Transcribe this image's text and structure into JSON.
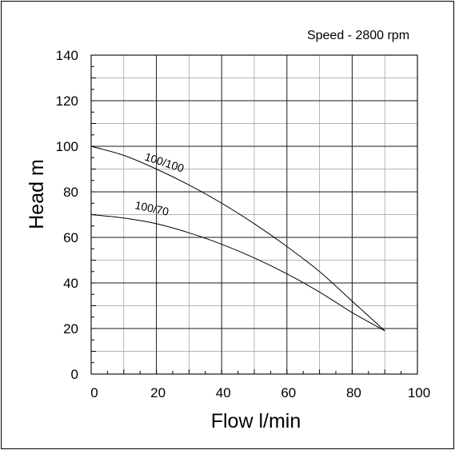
{
  "chart_data": {
    "type": "line",
    "annotation": "Speed - 2800 rpm",
    "xlabel": "Flow l/min",
    "ylabel": "Head m",
    "xlim": [
      0,
      100
    ],
    "ylim": [
      0,
      140
    ],
    "xticks": [
      "0",
      "20",
      "40",
      "60",
      "80",
      "100"
    ],
    "yticks": [
      "0",
      "20",
      "40",
      "60",
      "80",
      "100",
      "120",
      "140"
    ],
    "grid": true,
    "series": [
      {
        "name": "100/100",
        "x": [
          0,
          10,
          20,
          30,
          40,
          50,
          60,
          70,
          80,
          90
        ],
        "y": [
          100,
          96,
          90,
          83,
          75,
          66,
          56,
          45,
          32,
          19
        ]
      },
      {
        "name": "100/70",
        "x": [
          0,
          10,
          20,
          30,
          40,
          50,
          60,
          70,
          80,
          90
        ],
        "y": [
          70,
          68.5,
          66,
          62,
          57,
          51,
          44,
          36,
          27,
          19
        ]
      }
    ]
  }
}
